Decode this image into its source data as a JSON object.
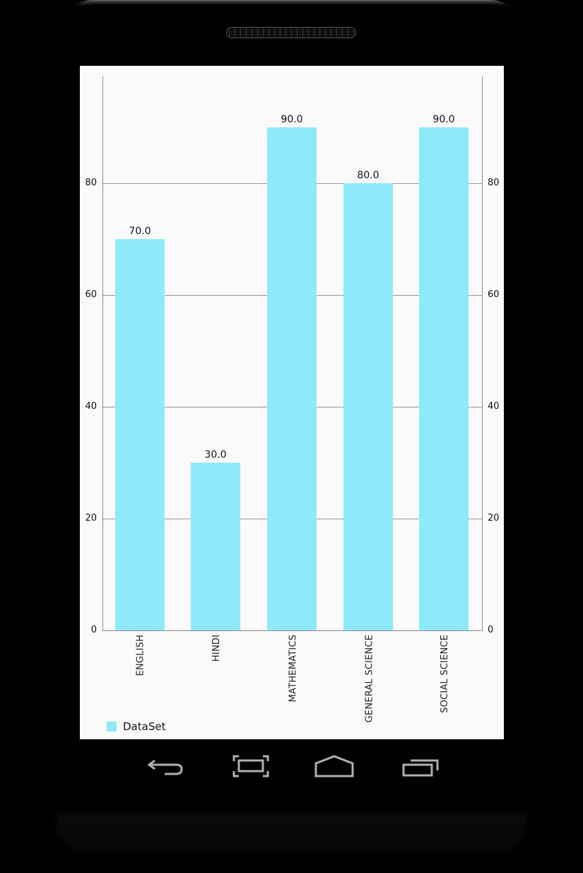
{
  "device": {
    "type": "android-phone-emulator"
  },
  "chart_data": {
    "type": "bar",
    "title": "",
    "xlabel": "",
    "ylabel": "",
    "categories": [
      "ENGLISH",
      "HINDI",
      "MATHEMATICS",
      "GENERAL SCIENCE",
      "SOCIAL SCIENCE"
    ],
    "values": [
      70.0,
      30.0,
      90.0,
      80.0,
      90.0
    ],
    "value_labels": [
      "70.0",
      "30.0",
      "90.0",
      "80.0",
      "90.0"
    ],
    "series": [
      {
        "name": "DataSet",
        "color": "#8EEAFB",
        "values": [
          70.0,
          30.0,
          90.0,
          80.0,
          90.0
        ]
      }
    ],
    "ylim": [
      0,
      98.8
    ],
    "yticks": [
      0,
      20,
      40,
      60,
      80
    ],
    "ytick_labels": [
      "0",
      "20",
      "40",
      "60",
      "80"
    ],
    "dual_y_axis": true,
    "grid": true,
    "legend_position": "bottom-left",
    "x_label_rotation": -90
  },
  "legend": {
    "label": "DataSet",
    "color": "#8EEAFB"
  },
  "navbar": {
    "buttons": [
      {
        "name": "back",
        "icon": "back-arrow-icon"
      },
      {
        "name": "screenshot",
        "icon": "fullscreen-brackets-icon"
      },
      {
        "name": "home",
        "icon": "home-icon"
      },
      {
        "name": "recents",
        "icon": "recent-apps-icon"
      }
    ]
  }
}
